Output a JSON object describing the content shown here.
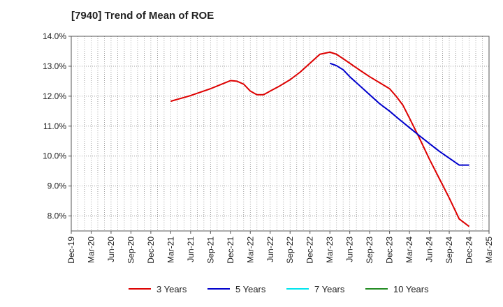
{
  "chart_data": {
    "type": "line",
    "title": "[7940]  Trend of Mean of ROE",
    "xlabel": "",
    "ylabel": "",
    "categories": [
      "Dec-19",
      "Mar-20",
      "Jun-20",
      "Sep-20",
      "Dec-20",
      "Mar-21",
      "Jun-21",
      "Sep-21",
      "Dec-21",
      "Mar-22",
      "Jun-22",
      "Sep-22",
      "Dec-22",
      "Mar-23",
      "Jun-23",
      "Sep-23",
      "Dec-23",
      "Mar-24",
      "Jun-24",
      "Sep-24",
      "Dec-24",
      "Mar-25"
    ],
    "y_ticks": [
      "8.0%",
      "9.0%",
      "10.0%",
      "11.0%",
      "12.0%",
      "13.0%",
      "14.0%"
    ],
    "ylim": [
      7.5,
      14.0
    ],
    "grid": true,
    "legend_position": "bottom",
    "series": [
      {
        "name": "3 Years",
        "color": "#dd0000",
        "x": [
          5,
          6,
          7,
          8,
          8.33,
          8.67,
          9,
          9.33,
          9.67,
          10,
          10.5,
          11,
          11.5,
          12,
          12.5,
          13,
          13.33,
          13.67,
          14,
          14.5,
          15,
          15.5,
          16,
          16.33,
          16.67,
          17,
          17.5,
          18,
          18.5,
          19,
          19.5,
          20
        ],
        "values": [
          11.83,
          12.02,
          12.25,
          12.52,
          12.5,
          12.4,
          12.17,
          12.05,
          12.05,
          12.17,
          12.35,
          12.55,
          12.8,
          13.1,
          13.4,
          13.47,
          13.4,
          13.25,
          13.1,
          12.87,
          12.65,
          12.45,
          12.25,
          12.0,
          11.7,
          11.27,
          10.6,
          9.9,
          9.25,
          8.6,
          7.9,
          7.65
        ]
      },
      {
        "name": "5 Years",
        "color": "#0000cc",
        "x": [
          13,
          13.33,
          13.67,
          14,
          14.5,
          15,
          15.5,
          16,
          16.5,
          17,
          17.5,
          18,
          18.5,
          19,
          19.5,
          20
        ],
        "values": [
          13.1,
          13.02,
          12.88,
          12.65,
          12.35,
          12.05,
          11.75,
          11.5,
          11.22,
          10.95,
          10.68,
          10.42,
          10.16,
          9.93,
          9.7,
          9.7
        ]
      },
      {
        "name": "7 Years",
        "color": "#00e5ee",
        "x": [],
        "values": []
      },
      {
        "name": "10 Years",
        "color": "#228b22",
        "x": [],
        "values": []
      }
    ]
  }
}
